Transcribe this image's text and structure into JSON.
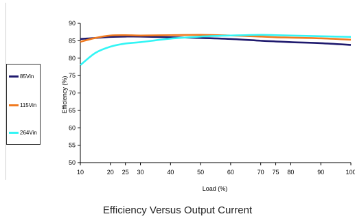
{
  "chart_data": {
    "type": "line",
    "xlabel": "Load (%)",
    "ylabel": "Efficiency (%)",
    "xlim": [
      10,
      100
    ],
    "ylim": [
      50,
      90
    ],
    "xticks": [
      10,
      20,
      25,
      30,
      40,
      50,
      60,
      70,
      75,
      80,
      90,
      100
    ],
    "yticks": [
      50,
      55,
      60,
      65,
      70,
      75,
      80,
      85,
      90
    ],
    "grid": false,
    "legend_position": "left",
    "x": [
      10,
      15,
      20,
      25,
      30,
      40,
      50,
      60,
      70,
      75,
      80,
      90,
      100
    ],
    "series": [
      {
        "name": "85Vin",
        "color": "#1f1a6e",
        "values": [
          85.5,
          85.8,
          86.1,
          86.2,
          86.2,
          86.0,
          85.8,
          85.5,
          85.0,
          84.8,
          84.6,
          84.3,
          83.8
        ]
      },
      {
        "name": "115Vin",
        "color": "#f07a20",
        "values": [
          84.7,
          85.8,
          86.5,
          86.6,
          86.5,
          86.6,
          86.7,
          86.5,
          86.2,
          86.0,
          85.9,
          85.7,
          85.3
        ]
      },
      {
        "name": "264Vin",
        "color": "#33f5f5",
        "values": [
          78.0,
          81.5,
          83.3,
          84.2,
          84.6,
          85.6,
          86.2,
          86.5,
          86.7,
          86.6,
          86.5,
          86.3,
          86.1
        ]
      }
    ]
  },
  "caption": "Efficiency Versus Output Current"
}
